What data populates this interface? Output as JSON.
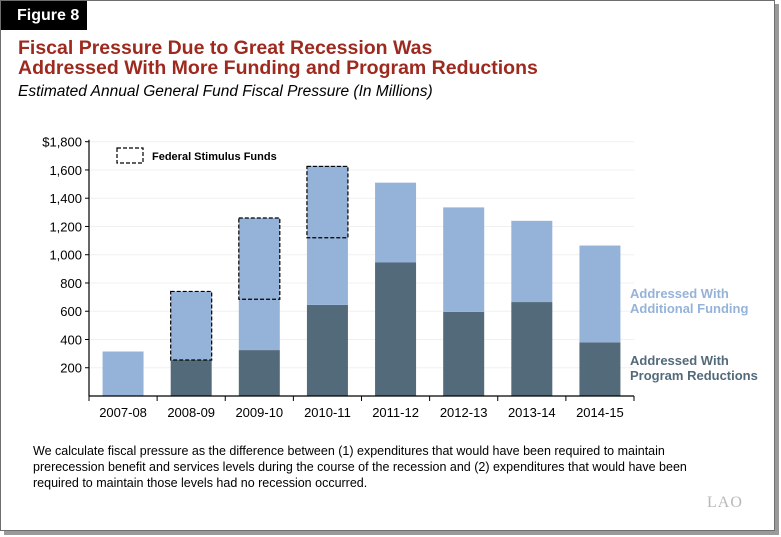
{
  "figure_label": "Figure 8",
  "title_lines": [
    "Fiscal Pressure Due to Great Recession Was",
    "Addressed With More Funding and Program Reductions"
  ],
  "subtitle": "Estimated Annual General Fund Fiscal Pressure (In Millions)",
  "note": "We calculate fiscal pressure as the difference between (1) expenditures that would have been required to maintain prerecession benefit and services levels during the course of the recession and (2) expenditures that would have been required to maintain those levels had no recession occurred.",
  "logo": "LAO",
  "chart_data": {
    "type": "bar",
    "stacked": true,
    "categories": [
      "2007-08",
      "2008-09",
      "2009-10",
      "2010-11",
      "2011-12",
      "2012-13",
      "2013-14",
      "2014-15"
    ],
    "series": [
      {
        "name": "Addressed With Program Reductions",
        "color": "#536a7b",
        "values": [
          0,
          255,
          325,
          645,
          945,
          595,
          665,
          380
        ]
      },
      {
        "name": "Addressed With Additional Funding",
        "color": "#95b3d9",
        "values": [
          315,
          485,
          935,
          985,
          565,
          740,
          575,
          685
        ]
      }
    ],
    "federal_stimulus": {
      "name": "Federal Stimulus Funds",
      "ranges": [
        null,
        [
          255,
          740
        ],
        [
          685,
          1260
        ],
        [
          1120,
          1625
        ],
        null,
        null,
        null,
        null
      ]
    },
    "ylim": [
      0,
      1800
    ],
    "yticks": [
      200,
      400,
      600,
      800,
      1000,
      1200,
      1400,
      1600,
      1800
    ],
    "ytick_labels": [
      "200",
      "400",
      "600",
      "800",
      "1,000",
      "1,200",
      "1,400",
      "1,600",
      "$1,800"
    ],
    "grid": true,
    "legend": "right"
  }
}
